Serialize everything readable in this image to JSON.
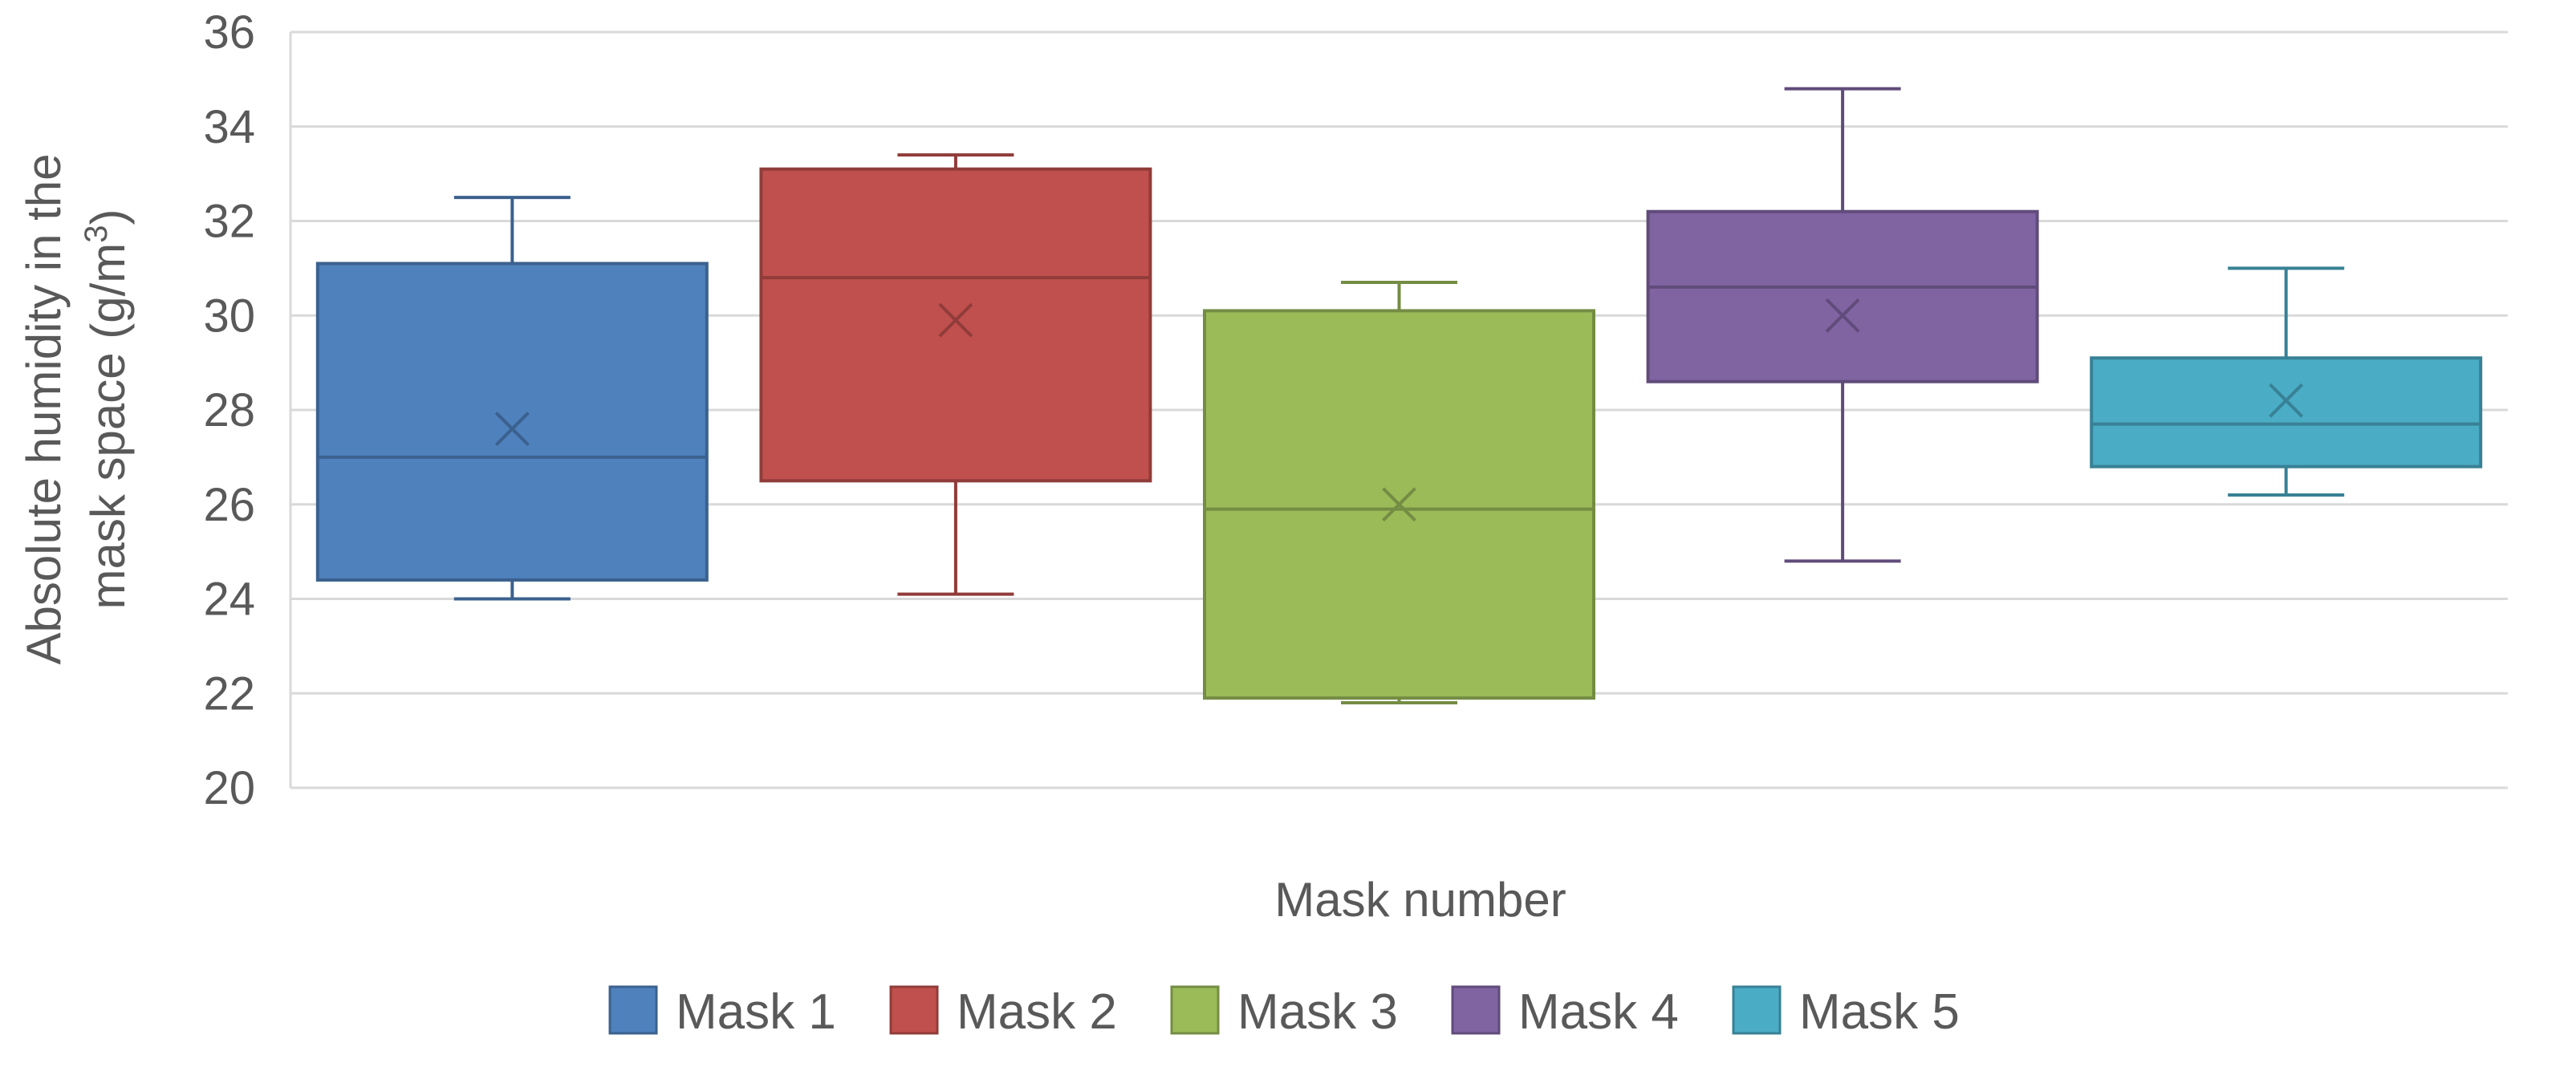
{
  "chart_data": {
    "type": "box",
    "title": "",
    "xlabel": "Mask number",
    "ylabel_main": "Absolute humidity in the",
    "ylabel_second": "mask space (g/m",
    "ylabel_sup": "3",
    "ylabel_close": ")",
    "ylim": [
      20,
      36
    ],
    "yticks": [
      20,
      22,
      24,
      26,
      28,
      30,
      32,
      34,
      36
    ],
    "grid": true,
    "legend_position": "bottom",
    "series": [
      {
        "name": "Mask 1",
        "color": "#4f81bd",
        "min": 24.0,
        "q1": 24.4,
        "median": 27.0,
        "q3": 31.1,
        "max": 32.5,
        "mean": 27.6
      },
      {
        "name": "Mask 2",
        "color": "#c0504d",
        "min": 24.1,
        "q1": 26.5,
        "median": 30.8,
        "q3": 33.1,
        "max": 33.4,
        "mean": 29.9
      },
      {
        "name": "Mask 3",
        "color": "#9bbb59",
        "min": 21.8,
        "q1": 21.9,
        "median": 25.9,
        "q3": 30.1,
        "max": 30.7,
        "mean": 26.0
      },
      {
        "name": "Mask 4",
        "color": "#8064a2",
        "min": 24.8,
        "q1": 28.6,
        "median": 30.6,
        "q3": 32.2,
        "max": 34.8,
        "mean": 30.0
      },
      {
        "name": "Mask 5",
        "color": "#4bacc6",
        "min": 26.2,
        "q1": 26.8,
        "median": 27.7,
        "q3": 29.1,
        "max": 31.0,
        "mean": 28.2
      }
    ]
  }
}
